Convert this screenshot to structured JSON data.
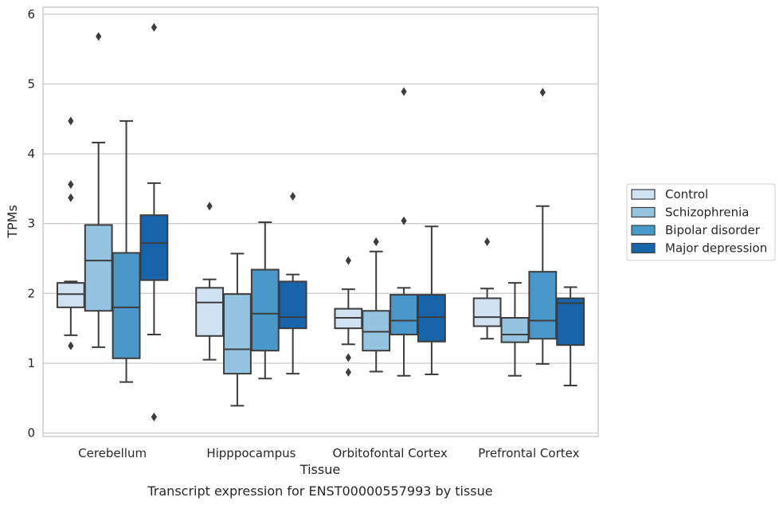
{
  "chart_data": {
    "type": "box",
    "title": "",
    "caption": "Transcript expression for ENST00000557993 by tissue",
    "xlabel": "Tissue",
    "ylabel": "TPMs",
    "ylim": [
      -0.05,
      6.1
    ],
    "yticks": [
      0,
      1,
      2,
      3,
      4,
      5,
      6
    ],
    "grid": true,
    "legend_position": "right",
    "categories": [
      "Cerebellum",
      "Hipppocampus",
      "Orbitofontal Cortex",
      "Prefrontal Cortex"
    ],
    "series": [
      {
        "name": "Control",
        "color": "#d0e1f2",
        "boxes": [
          {
            "whislo": 1.4,
            "q1": 1.8,
            "med": 1.99,
            "q3": 2.15,
            "whishi": 2.17,
            "fliers": [
              4.47,
              3.56,
              3.37,
              1.25
            ]
          },
          {
            "whislo": 1.05,
            "q1": 1.39,
            "med": 1.87,
            "q3": 2.08,
            "whishi": 2.2,
            "fliers": [
              3.25
            ]
          },
          {
            "whislo": 1.27,
            "q1": 1.5,
            "med": 1.65,
            "q3": 1.78,
            "whishi": 2.06,
            "fliers": [
              2.47,
              1.08,
              0.87
            ]
          },
          {
            "whislo": 1.35,
            "q1": 1.53,
            "med": 1.66,
            "q3": 1.93,
            "whishi": 2.07,
            "fliers": [
              2.74
            ]
          }
        ]
      },
      {
        "name": "Schizophrenia",
        "color": "#94c4df",
        "boxes": [
          {
            "whislo": 1.23,
            "q1": 1.75,
            "med": 2.47,
            "q3": 2.98,
            "whishi": 4.16,
            "fliers": [
              5.68
            ]
          },
          {
            "whislo": 0.39,
            "q1": 0.85,
            "med": 1.2,
            "q3": 1.99,
            "whishi": 2.57,
            "fliers": []
          },
          {
            "whislo": 0.88,
            "q1": 1.18,
            "med": 1.45,
            "q3": 1.75,
            "whishi": 2.6,
            "fliers": [
              2.74
            ]
          },
          {
            "whislo": 0.82,
            "q1": 1.3,
            "med": 1.41,
            "q3": 1.65,
            "whishi": 2.15,
            "fliers": []
          }
        ]
      },
      {
        "name": "Bipolar disorder",
        "color": "#4a98c9",
        "boxes": [
          {
            "whislo": 0.73,
            "q1": 1.07,
            "med": 1.8,
            "q3": 2.58,
            "whishi": 4.47,
            "fliers": []
          },
          {
            "whislo": 0.78,
            "q1": 1.18,
            "med": 1.71,
            "q3": 2.34,
            "whishi": 3.02,
            "fliers": []
          },
          {
            "whislo": 0.82,
            "q1": 1.41,
            "med": 1.61,
            "q3": 1.98,
            "whishi": 2.08,
            "fliers": [
              4.89,
              3.04
            ]
          },
          {
            "whislo": 0.99,
            "q1": 1.35,
            "med": 1.61,
            "q3": 2.31,
            "whishi": 3.25,
            "fliers": [
              4.88
            ]
          }
        ]
      },
      {
        "name": "Major depression",
        "color": "#1764ab",
        "boxes": [
          {
            "whislo": 1.41,
            "q1": 2.19,
            "med": 2.72,
            "q3": 3.12,
            "whishi": 3.58,
            "fliers": [
              5.81,
              0.23
            ]
          },
          {
            "whislo": 0.85,
            "q1": 1.5,
            "med": 1.66,
            "q3": 2.17,
            "whishi": 2.27,
            "fliers": [
              3.39
            ]
          },
          {
            "whislo": 0.84,
            "q1": 1.31,
            "med": 1.66,
            "q3": 1.98,
            "whishi": 2.96,
            "fliers": []
          },
          {
            "whislo": 0.68,
            "q1": 1.26,
            "med": 1.86,
            "q3": 1.93,
            "whishi": 2.09,
            "fliers": []
          }
        ]
      }
    ]
  }
}
